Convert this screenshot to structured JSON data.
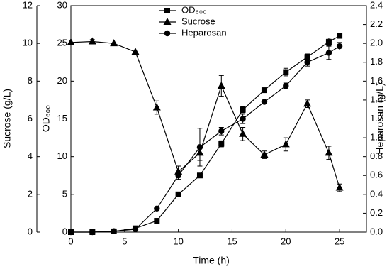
{
  "chart_data": {
    "type": "line",
    "xlabel": "Time (h)",
    "ylabel": "OD₆₀₀",
    "y2label": "Heparosan (g/L)",
    "y3label": "Sucrose (g/L)",
    "x": [
      0,
      2,
      4,
      6,
      8,
      10,
      12,
      14,
      16,
      18,
      20,
      22,
      24,
      25
    ],
    "xlim": [
      0,
      27.5
    ],
    "xticks": [
      0,
      5,
      10,
      15,
      20,
      25
    ],
    "ylim": [
      0,
      30
    ],
    "yticks": [
      0,
      5,
      10,
      15,
      20,
      25,
      30
    ],
    "y2lim": [
      0,
      2.4
    ],
    "y2ticks": [
      {
        "value": 0,
        "label": "0.0"
      },
      {
        "value": 0.2,
        "label": "0.2"
      },
      {
        "value": 0.4,
        "label": "0.4"
      },
      {
        "value": 0.6,
        "label": "0.6"
      },
      {
        "value": 0.8,
        "label": "0.8"
      },
      {
        "value": 1,
        "label": "1.0"
      },
      {
        "value": 1.2,
        "label": "1.2"
      },
      {
        "value": 1.4,
        "label": "1.4"
      },
      {
        "value": 1.6,
        "label": "1.6"
      },
      {
        "value": 1.8,
        "label": "1.8"
      },
      {
        "value": 2,
        "label": "2.0"
      },
      {
        "value": 2.2,
        "label": "2.2"
      },
      {
        "value": 2.4,
        "label": "2.4"
      }
    ],
    "y3lim": [
      0,
      12
    ],
    "y3ticks": [
      0,
      2,
      4,
      6,
      8,
      10,
      12
    ],
    "series": [
      {
        "name": "OD₆₀₀",
        "marker": "square",
        "color": "#000000",
        "axis": "y",
        "values": [
          0,
          0,
          0.1,
          0.5,
          1.5,
          5,
          7.5,
          11.7,
          16.2,
          18.8,
          21.2,
          23.2,
          25.2,
          26
        ],
        "errors": [
          null,
          null,
          null,
          null,
          null,
          0.3,
          0.3,
          0.4,
          0.4,
          0.3,
          0.5,
          0.4,
          0.5,
          0.3
        ]
      },
      {
        "name": "Sucrose",
        "marker": "triangle",
        "color": "#000000",
        "axis": "y3",
        "values": [
          10.05,
          10.1,
          10,
          9.55,
          6.6,
          3.2,
          4.2,
          7.75,
          5.2,
          4.1,
          4.65,
          6.8,
          4.2,
          2.35
        ],
        "errors": [
          null,
          0.1,
          null,
          0.1,
          0.35,
          0.3,
          0.4,
          0.55,
          0.35,
          0.2,
          0.35,
          0.2,
          0.35,
          0.2
        ]
      },
      {
        "name": "Heparosan",
        "marker": "circle",
        "color": "#000000",
        "axis": "y2",
        "values": [
          0,
          0,
          0.01,
          0.03,
          0.25,
          0.6,
          0.9,
          1.07,
          1.2,
          1.38,
          1.55,
          1.8,
          1.9,
          1.97
        ],
        "errors": [
          null,
          null,
          null,
          null,
          null,
          0.04,
          0.2,
          0.04,
          0.05,
          0.02,
          0.03,
          0.04,
          0.07,
          0.04
        ]
      }
    ]
  }
}
